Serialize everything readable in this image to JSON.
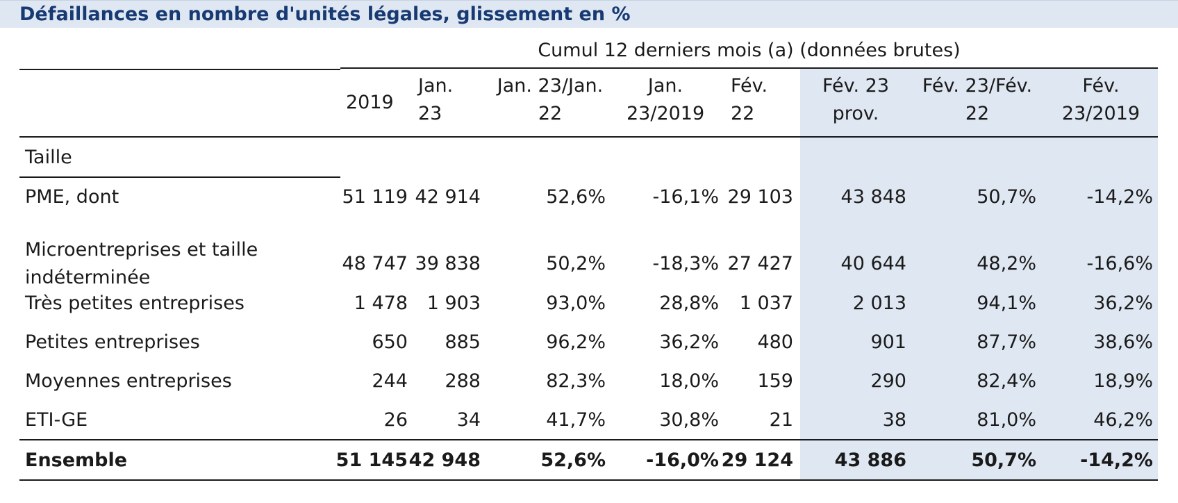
{
  "title": "Défaillances en nombre d'unités légales, glissement en %",
  "group_header": "Cumul 12 derniers mois (a) (données brutes)",
  "columns": [
    "2019",
    "Jan.\n23",
    "Jan. 23/Jan.\n22",
    "Jan.\n23/2019",
    "Fév.\n22",
    "Fév. 23\nprov.",
    "Fév. 23/Fév.\n22",
    "Fév.\n23/2019"
  ],
  "section_label": "Taille",
  "rows": [
    {
      "label": "PME, dont",
      "values": [
        "51 119",
        "42 914",
        "52,6%",
        "-16,1%",
        "29 103",
        "43 848",
        "50,7%",
        "-14,2%"
      ]
    },
    {
      "label": "Microentreprises et taille\nindéterminée",
      "values": [
        "48 747",
        "39 838",
        "50,2%",
        "-18,3%",
        "27 427",
        "40 644",
        "48,2%",
        "-16,6%"
      ]
    },
    {
      "label": "Très petites entreprises",
      "values": [
        "1 478",
        "1 903",
        "93,0%",
        "28,8%",
        "1 037",
        "2 013",
        "94,1%",
        "36,2%"
      ]
    },
    {
      "label": "Petites entreprises",
      "values": [
        "650",
        "885",
        "96,2%",
        "36,2%",
        "480",
        "901",
        "87,7%",
        "38,6%"
      ]
    },
    {
      "label": "Moyennes entreprises",
      "values": [
        "244",
        "288",
        "82,3%",
        "18,0%",
        "159",
        "290",
        "82,4%",
        "18,9%"
      ]
    },
    {
      "label": "ETI-GE",
      "values": [
        "26",
        "34",
        "41,7%",
        "30,8%",
        "21",
        "38",
        "81,0%",
        "46,2%"
      ]
    }
  ],
  "total_row": {
    "label": "Ensemble",
    "values": [
      "51 145",
      "42 948",
      "52,6%",
      "-16,0%",
      "29 124",
      "43 886",
      "50,7%",
      "-14,2%"
    ]
  },
  "colors": {
    "title_text": "#173a72",
    "title_background": "#dfe7f2",
    "highlight_column_background": "#dfe7f2"
  }
}
